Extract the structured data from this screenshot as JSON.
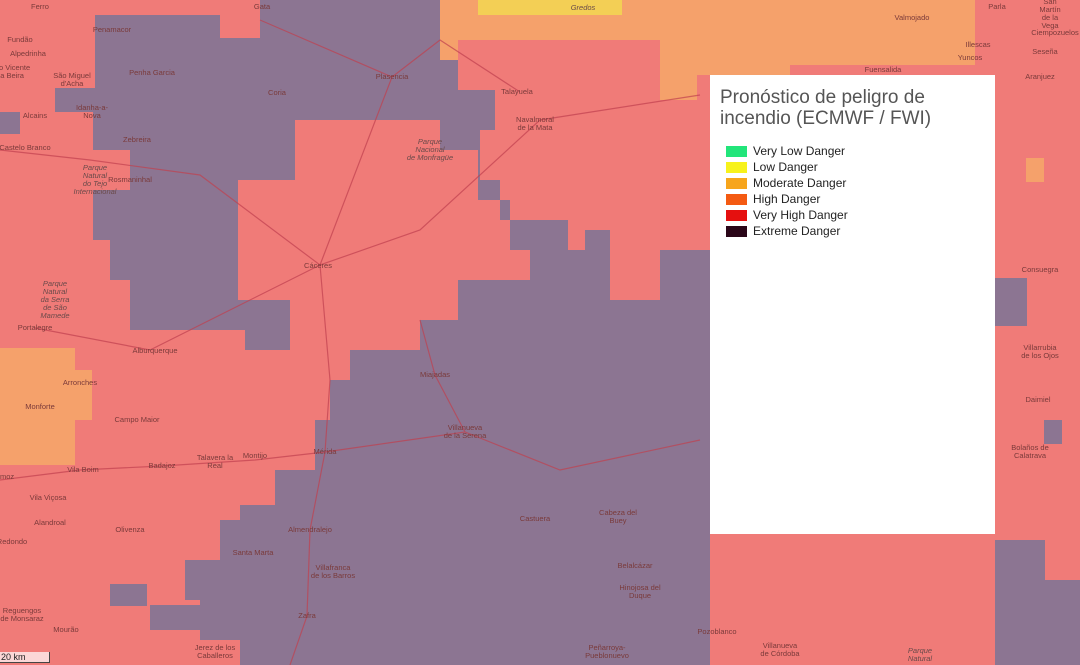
{
  "legend": {
    "title": "Pronóstico de peligro de incendio (ECMWF / FWI)",
    "items": [
      {
        "label": "Very Low Danger",
        "color": "#22e57a"
      },
      {
        "label": "Low Danger",
        "color": "#f7f21c"
      },
      {
        "label": "Moderate Danger",
        "color": "#f7a51c"
      },
      {
        "label": "High Danger",
        "color": "#f45a12"
      },
      {
        "label": "Very High Danger",
        "color": "#e5100f"
      },
      {
        "label": "Extreme Danger",
        "color": "#2a0618"
      }
    ]
  },
  "colors": {
    "very_high_overlay": "#f07b78",
    "extreme_overlay": "#8c7592",
    "moderate_overlay": "#f5a16b",
    "low_overlay": "#f3cf55"
  },
  "scale_bar": "20 km",
  "places": [
    "Ferro",
    "Gata",
    "Penamacor",
    "Fundão",
    "Alpedrinha",
    "Penha Garcia",
    "Plasencia",
    "Talayuela",
    "Coria",
    "Idanha-a-\nNova",
    "Navalmoral\nde la Mata",
    "Alcains",
    "Castelo Branco",
    "Zebreira",
    "Parque\nNacional\nde Monfragüe",
    "Rosmaninhal",
    "Cáceres",
    "Portalegre",
    "Alburquerque",
    "Miajadas",
    "Arronches",
    "Monforte",
    "Campo Maior",
    "Villanueva\nde la Serena",
    "Mérida",
    "Montijo",
    "Badajoz",
    "Talavera la\nReal",
    "Vila Boim",
    "Vila Viçosa",
    "Alandroal",
    "Castuera",
    "Cabeza del\nBuey",
    "Almendralejo",
    "Olivenza",
    "Santa Marta",
    "Villafranca\nde los Barros",
    "Belalcázar",
    "Hinojosa del\nDuque",
    "Redondo",
    "Reguengos\nde Monsaraz",
    "Zafra",
    "Jerez de los\nCaballeros",
    "Mourão",
    "Pozoblanco",
    "Villanueva\nde Córdoba",
    "Parque\nNatural",
    "Fuensalida",
    "Valmojado",
    "Gredos",
    "Parla",
    "San Martín\nde la Vega",
    "Illescas",
    "Yuncos",
    "Seseña",
    "Aranjuez",
    "Consuegra",
    "Villarrubia\nde los Ojos",
    "Daimiel",
    "Bolaños de\nCalatrava",
    "São Vicente\nda Beira",
    "São Miguel\nd'Acha",
    "Parque\nNatural\ndo Tejo\nInternacional",
    "Parque\nNatural\nda Serra\nde São\nMamede",
    "Ciempozuelos",
    "Peñarroya-\nPueblonuevo",
    "emoz"
  ]
}
